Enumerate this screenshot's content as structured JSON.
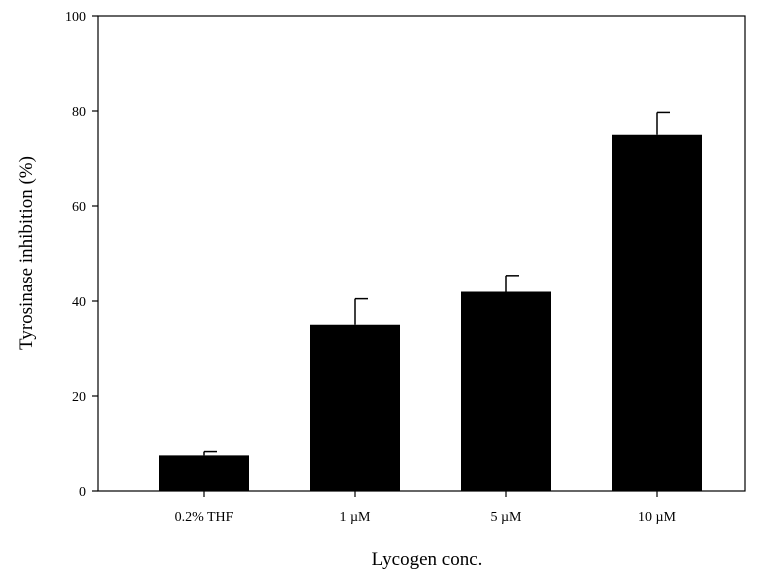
{
  "chart_data": {
    "type": "bar",
    "title": "",
    "xlabel": "Lycogen conc.",
    "ylabel": "Tyrosinase inhibition (%)",
    "categories": [
      "0.2% THF",
      "1 µM",
      "5 µM",
      "10 µM"
    ],
    "values": [
      7.5,
      35,
      42,
      75
    ],
    "error_plus": [
      0.8,
      5.5,
      3.3,
      4.7
    ],
    "ylim": [
      0,
      100
    ],
    "yticks": [
      0,
      20,
      40,
      60,
      80,
      100
    ],
    "grid": false,
    "legend": "none",
    "bar_color": "#000000"
  }
}
